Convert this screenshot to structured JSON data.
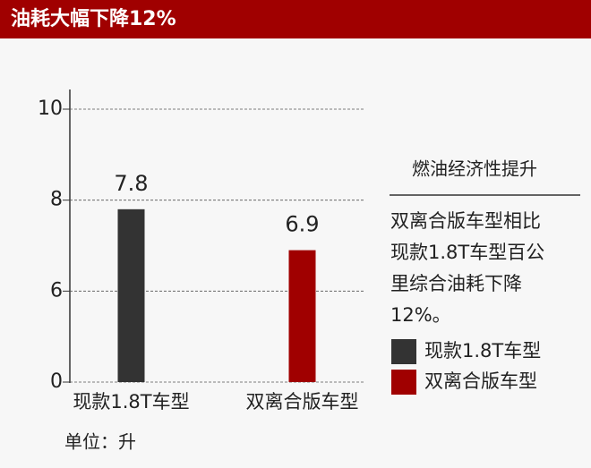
{
  "chart_data": {
    "type": "bar",
    "title": "油耗大幅下降12%",
    "unit": "单位：升",
    "categories": [
      "现款1.8T车型",
      "双离合版车型"
    ],
    "series": [
      {
        "name": "现款1.8T车型",
        "color": "#333333",
        "values": [
          7.8,
          null
        ]
      },
      {
        "name": "双离合版车型",
        "color": "#a00000",
        "values": [
          null,
          6.9
        ]
      }
    ],
    "ylim": [
      0,
      10
    ],
    "yticks": [
      0,
      6,
      8,
      10
    ],
    "axis_break": [
      0,
      4
    ],
    "grid": true,
    "note_title": "燃油经济性提升",
    "note_lines": [
      "双离合版车型相比",
      "现款1.8T车型百公",
      "里综合油耗下降",
      "12%。"
    ]
  }
}
